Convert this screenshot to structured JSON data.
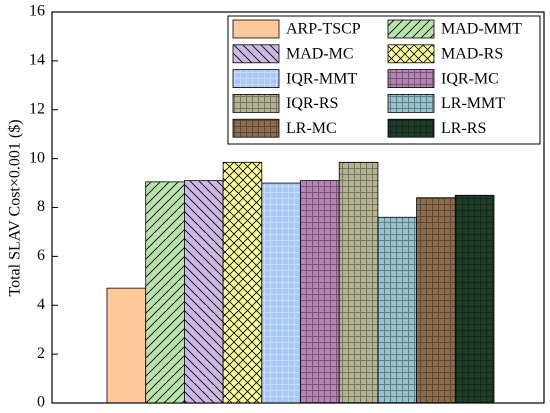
{
  "chart_data": {
    "type": "bar",
    "y_label": "Total SLAV Cost×0.001 ($)",
    "categories": [
      null
    ],
    "ylim": [
      0,
      16
    ],
    "yticks": [
      0,
      2,
      4,
      6,
      8,
      10,
      12,
      14,
      16
    ],
    "legend": "upper right",
    "series": [
      {
        "name": "ARP-TSCP",
        "color": "#fdc99a",
        "pattern": "solid",
        "values": [
          4.7
        ]
      },
      {
        "name": "MAD-MMT",
        "color": "#b9e3ad",
        "pattern": "forward",
        "values": [
          9.05
        ]
      },
      {
        "name": "MAD-MC",
        "color": "#cbb8e3",
        "pattern": "back",
        "values": [
          9.1
        ]
      },
      {
        "name": "MAD-RS",
        "color": "#ffff99",
        "pattern": "cross",
        "values": [
          9.85
        ]
      },
      {
        "name": "IQR-MMT",
        "color": "#a9c9fa",
        "pattern": "dots",
        "values": [
          9.0
        ]
      },
      {
        "name": "IQR-MC",
        "color": "#b783b7",
        "pattern": "grid",
        "values": [
          9.1
        ]
      },
      {
        "name": "IQR-RS",
        "color": "#b3b394",
        "pattern": "grid",
        "values": [
          9.85
        ]
      },
      {
        "name": "LR-MMT",
        "color": "#93c3cc",
        "pattern": "grid",
        "values": [
          7.6
        ]
      },
      {
        "name": "LR-MC",
        "color": "#8e6d4c",
        "pattern": "grid",
        "values": [
          8.4
        ]
      },
      {
        "name": "LR-RS",
        "color": "#1f3d2a",
        "pattern": "grid",
        "values": [
          8.5
        ]
      }
    ]
  }
}
